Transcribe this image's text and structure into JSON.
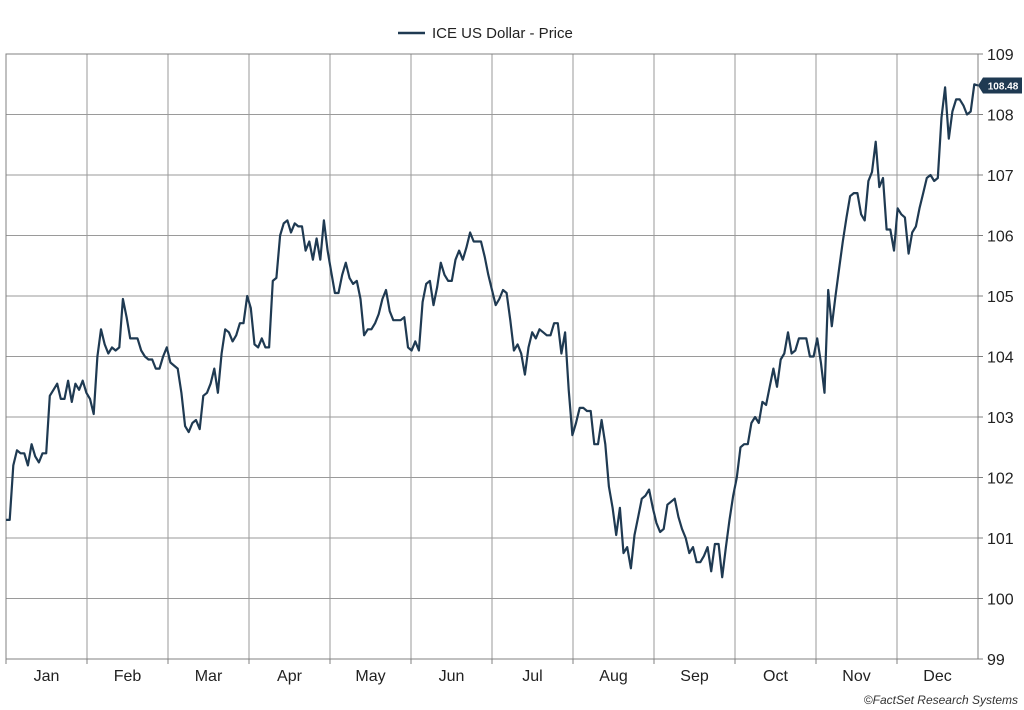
{
  "chart_data": {
    "type": "line",
    "title": "",
    "xlabel": "",
    "ylabel": "",
    "ylim": [
      99,
      109
    ],
    "yticks": [
      99,
      100,
      101,
      102,
      103,
      104,
      105,
      106,
      107,
      108,
      109
    ],
    "grid": true,
    "legend_position": "top-left",
    "month_labels": [
      "Jan",
      "Feb",
      "Mar",
      "Apr",
      "May",
      "Jun",
      "Jul",
      "Aug",
      "Sep",
      "Oct",
      "Nov",
      "Dec"
    ],
    "last_value_label": "108.48",
    "series": [
      {
        "name": "ICE US Dollar - Price",
        "color": "#1f3a52",
        "values": [
          101.3,
          101.3,
          102.2,
          102.45,
          102.4,
          102.4,
          102.2,
          102.55,
          102.35,
          102.25,
          102.4,
          102.4,
          103.35,
          103.45,
          103.55,
          103.3,
          103.3,
          103.6,
          103.25,
          103.55,
          103.45,
          103.6,
          103.4,
          103.3,
          103.05,
          104.0,
          104.45,
          104.2,
          104.05,
          104.15,
          104.1,
          104.15,
          104.95,
          104.65,
          104.3,
          104.3,
          104.3,
          104.1,
          104.0,
          103.95,
          103.95,
          103.8,
          103.8,
          104.0,
          104.15,
          103.9,
          103.85,
          103.8,
          103.4,
          102.85,
          102.75,
          102.9,
          102.95,
          102.8,
          103.35,
          103.4,
          103.55,
          103.8,
          103.4,
          104.05,
          104.45,
          104.4,
          104.25,
          104.35,
          104.55,
          104.55,
          105.0,
          104.8,
          104.2,
          104.15,
          104.3,
          104.15,
          104.15,
          105.25,
          105.3,
          106.0,
          106.2,
          106.25,
          106.05,
          106.2,
          106.15,
          106.15,
          105.75,
          105.9,
          105.6,
          105.95,
          105.6,
          106.25,
          105.75,
          105.4,
          105.05,
          105.05,
          105.35,
          105.55,
          105.3,
          105.2,
          105.25,
          104.95,
          104.35,
          104.45,
          104.45,
          104.55,
          104.7,
          104.95,
          105.1,
          104.75,
          104.6,
          104.6,
          104.6,
          104.65,
          104.15,
          104.1,
          104.25,
          104.1,
          104.9,
          105.2,
          105.25,
          104.85,
          105.15,
          105.55,
          105.35,
          105.25,
          105.25,
          105.6,
          105.75,
          105.6,
          105.8,
          106.05,
          105.9,
          105.9,
          105.9,
          105.65,
          105.35,
          105.1,
          104.85,
          104.95,
          105.1,
          105.05,
          104.6,
          104.1,
          104.2,
          104.05,
          103.7,
          104.15,
          104.4,
          104.3,
          104.45,
          104.4,
          104.35,
          104.35,
          104.55,
          104.55,
          104.05,
          104.4,
          103.45,
          102.7,
          102.9,
          103.15,
          103.15,
          103.1,
          103.1,
          102.55,
          102.55,
          102.95,
          102.55,
          101.85,
          101.5,
          101.05,
          101.5,
          100.75,
          100.85,
          100.5,
          101.05,
          101.35,
          101.65,
          101.7,
          101.8,
          101.5,
          101.25,
          101.1,
          101.15,
          101.55,
          101.6,
          101.65,
          101.35,
          101.15,
          101.0,
          100.75,
          100.85,
          100.6,
          100.6,
          100.7,
          100.85,
          100.45,
          100.9,
          100.9,
          100.35,
          100.85,
          101.3,
          101.7,
          102.0,
          102.5,
          102.55,
          102.55,
          102.9,
          103.0,
          102.9,
          103.25,
          103.2,
          103.5,
          103.8,
          103.5,
          103.95,
          104.05,
          104.4,
          104.05,
          104.1,
          104.3,
          104.3,
          104.3,
          104.0,
          104.0,
          104.3,
          103.9,
          103.4,
          105.1,
          104.5,
          105.0,
          105.45,
          105.9,
          106.3,
          106.65,
          106.7,
          106.7,
          106.35,
          106.25,
          106.9,
          107.05,
          107.55,
          106.8,
          106.95,
          106.1,
          106.1,
          105.75,
          106.45,
          106.35,
          106.3,
          105.7,
          106.05,
          106.15,
          106.45,
          106.7,
          106.95,
          107.0,
          106.9,
          106.95,
          107.95,
          108.45,
          107.6,
          108.05,
          108.25,
          108.25,
          108.15,
          108.0,
          108.05,
          108.5,
          108.48
        ]
      }
    ]
  },
  "credit": "©FactSet Research Systems"
}
